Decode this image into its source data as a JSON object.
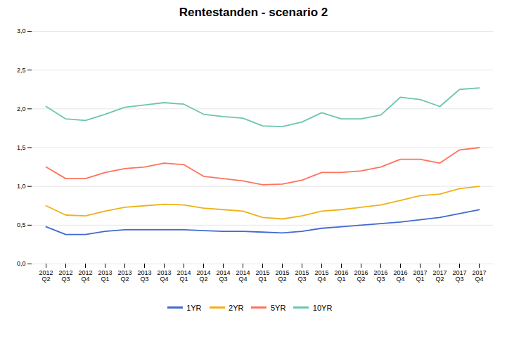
{
  "chart_data": {
    "type": "line",
    "title": "Rentestanden - scenario 2",
    "categories": [
      "2012\nQ2",
      "2012\nQ3",
      "2012\nQ4",
      "2013\nQ1",
      "2013\nQ2",
      "2013\nQ3",
      "2013\nQ4",
      "2014\nQ1",
      "2014\nQ2",
      "2014\nQ3",
      "2014\nQ4",
      "2015\nQ1",
      "2015\nQ2",
      "2015\nQ3",
      "2015\nQ4",
      "2016\nQ1",
      "2016\nQ2",
      "2016\nQ3",
      "2016\nQ4",
      "2017\nQ1",
      "2017\nQ2",
      "2017\nQ3",
      "2017\nQ4"
    ],
    "series": [
      {
        "name": "1YR",
        "values": [
          0.48,
          0.38,
          0.38,
          0.42,
          0.44,
          0.44,
          0.44,
          0.44,
          0.43,
          0.42,
          0.42,
          0.41,
          0.4,
          0.42,
          0.46,
          0.48,
          0.5,
          0.52,
          0.54,
          0.57,
          0.6,
          0.65,
          0.7
        ]
      },
      {
        "name": "2YR",
        "values": [
          0.75,
          0.63,
          0.62,
          0.68,
          0.73,
          0.75,
          0.77,
          0.76,
          0.72,
          0.7,
          0.68,
          0.6,
          0.58,
          0.62,
          0.68,
          0.7,
          0.73,
          0.76,
          0.82,
          0.88,
          0.9,
          0.97,
          1.0
        ]
      },
      {
        "name": "5YR",
        "values": [
          1.25,
          1.1,
          1.1,
          1.18,
          1.23,
          1.25,
          1.3,
          1.28,
          1.13,
          1.1,
          1.07,
          1.02,
          1.03,
          1.08,
          1.18,
          1.18,
          1.2,
          1.25,
          1.35,
          1.35,
          1.3,
          1.47,
          1.5
        ]
      },
      {
        "name": "10YR",
        "values": [
          2.03,
          1.87,
          1.85,
          1.93,
          2.02,
          2.05,
          2.08,
          2.06,
          1.93,
          1.9,
          1.88,
          1.78,
          1.77,
          1.83,
          1.95,
          1.87,
          1.87,
          1.92,
          2.15,
          2.12,
          2.03,
          2.25,
          2.27
        ]
      }
    ],
    "ylim": [
      0.0,
      3.0
    ],
    "yticks": [
      {
        "value": 0.0,
        "label": "0,0"
      },
      {
        "value": 0.5,
        "label": "0,5"
      },
      {
        "value": 1.0,
        "label": "1,0"
      },
      {
        "value": 1.5,
        "label": "1,5"
      },
      {
        "value": 2.0,
        "label": "2,0"
      },
      {
        "value": 2.5,
        "label": "2,5"
      },
      {
        "value": 3.0,
        "label": "3,0"
      }
    ],
    "grid": true,
    "legend": "bottom"
  }
}
